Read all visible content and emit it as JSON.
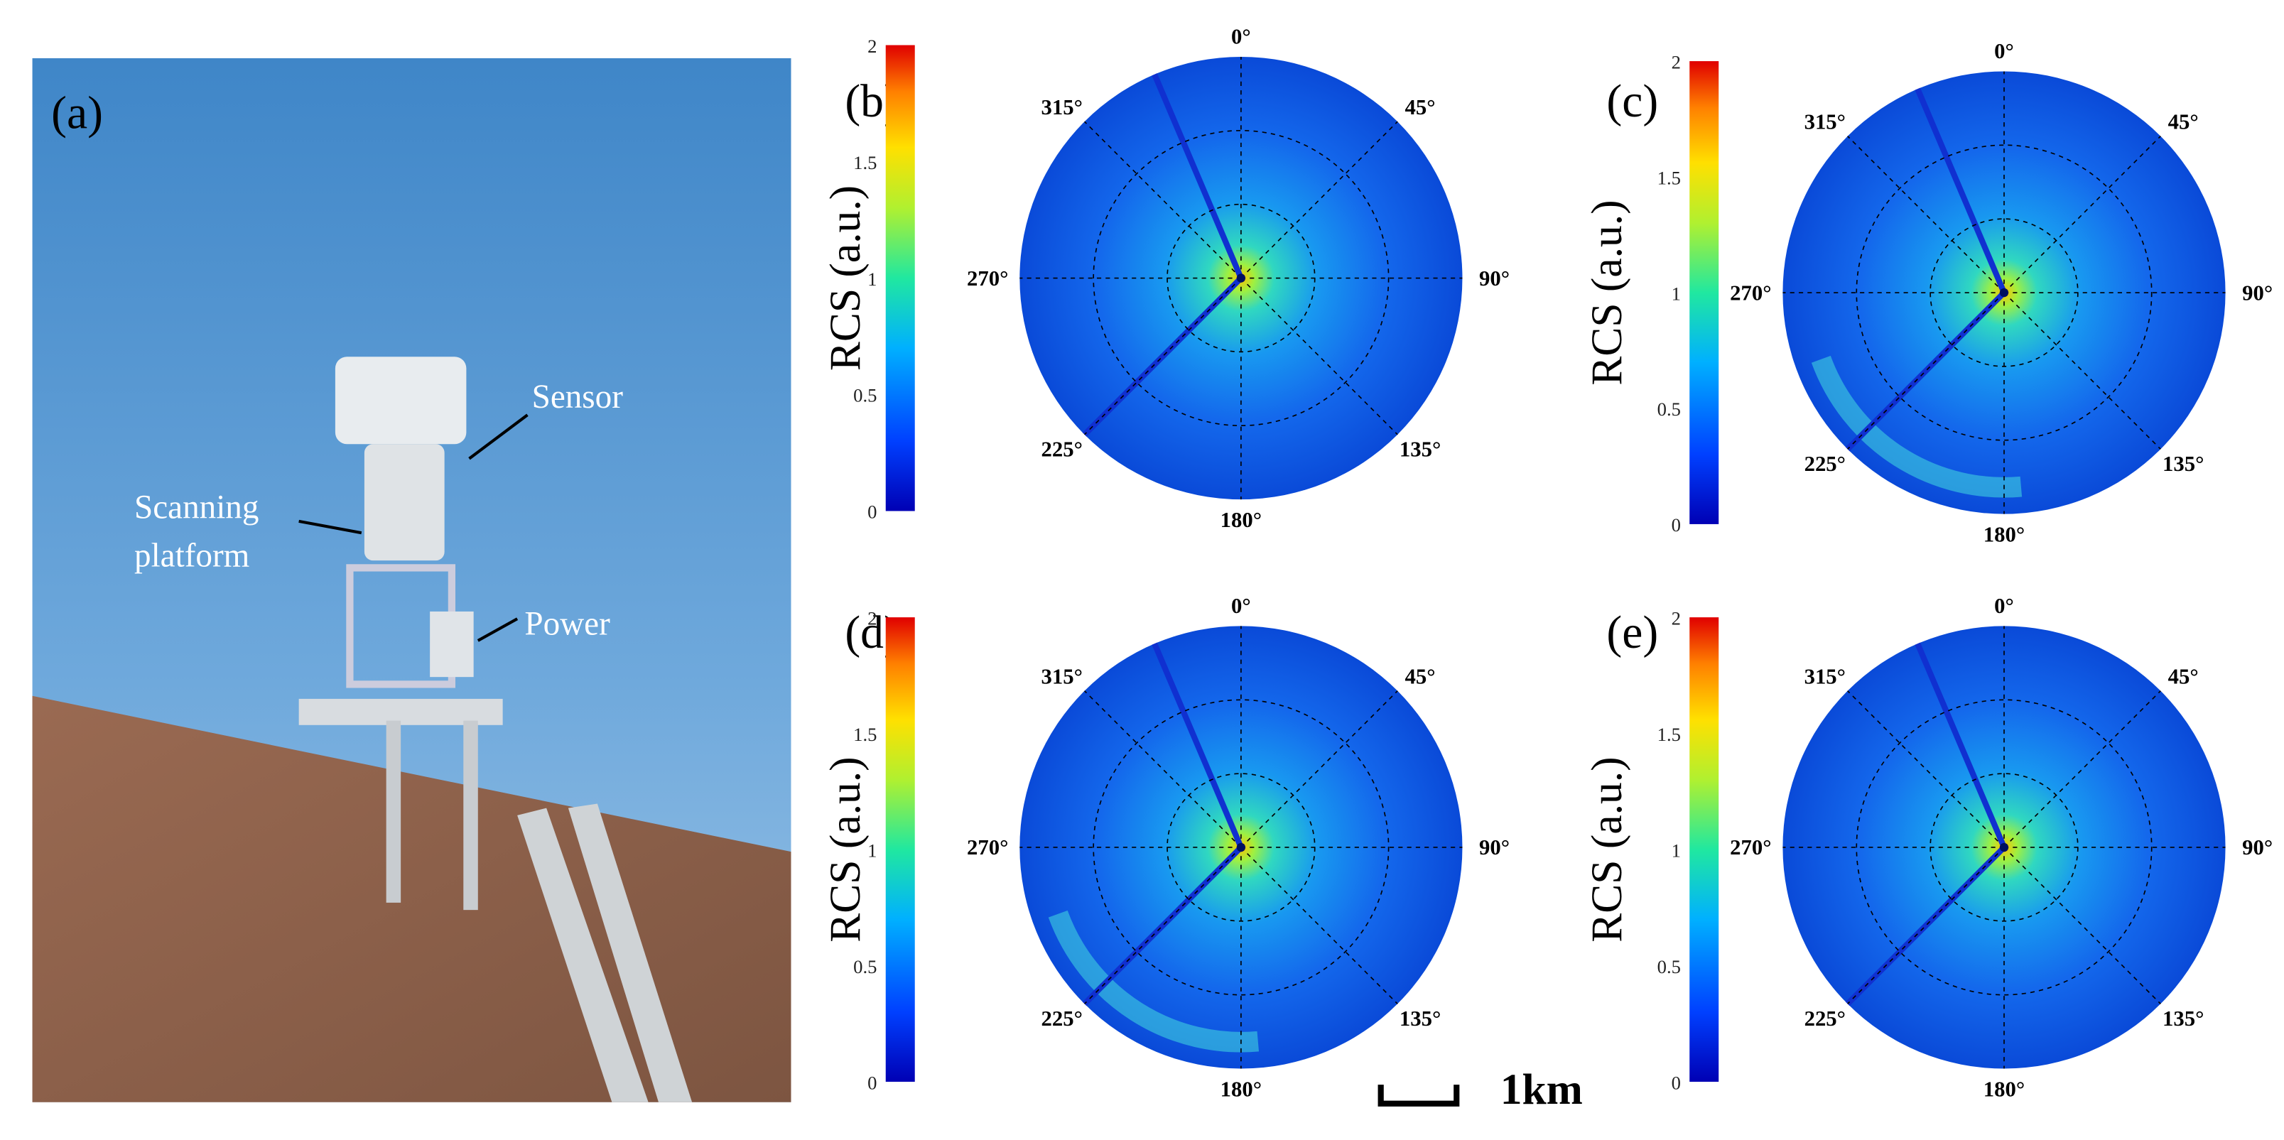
{
  "photo": {
    "label": "(a)",
    "sensor": "Sensor",
    "platform": [
      "Scanning",
      "platform"
    ],
    "power": "Power"
  },
  "panels": [
    {
      "label": "(b)",
      "colorbar": {
        "label": "RCS (a.u.)",
        "ticks": [
          "0",
          "0.5",
          "1",
          "1.5",
          "2"
        ]
      },
      "angles": [
        "0°",
        "45°",
        "90°",
        "135°",
        "180°",
        "225°",
        "270°",
        "315°"
      ]
    },
    {
      "label": "(c)",
      "colorbar": {
        "label": "RCS (a.u.)",
        "ticks": [
          "0",
          "0.5",
          "1",
          "1.5",
          "2"
        ]
      },
      "angles": [
        "0°",
        "45°",
        "90°",
        "135°",
        "180°",
        "225°",
        "270°",
        "315°"
      ]
    },
    {
      "label": "(d)",
      "colorbar": {
        "label": "RCS (a.u.)",
        "ticks": [
          "0",
          "0.5",
          "1",
          "1.5",
          "2"
        ]
      },
      "angles": [
        "0°",
        "45°",
        "90°",
        "135°",
        "180°",
        "225°",
        "270°",
        "315°"
      ]
    },
    {
      "label": "(e)",
      "colorbar": {
        "label": "RCS (a.u.)",
        "ticks": [
          "0",
          "0.5",
          "1",
          "1.5",
          "2"
        ]
      },
      "angles": [
        "0°",
        "45°",
        "90°",
        "135°",
        "180°",
        "225°",
        "270°",
        "315°"
      ]
    }
  ],
  "scale_bar": "1km"
}
